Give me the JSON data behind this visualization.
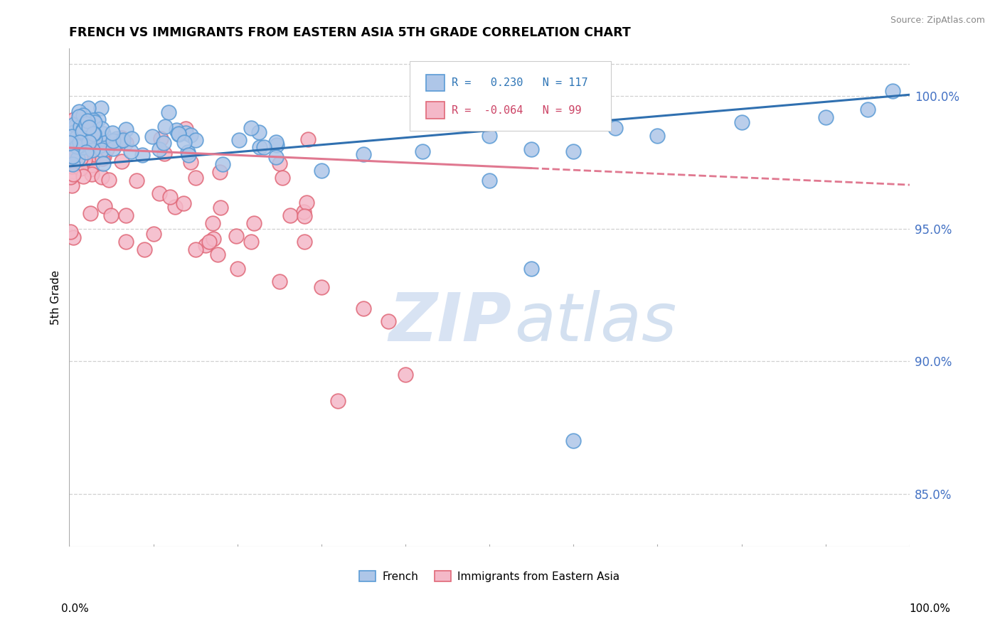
{
  "title": "FRENCH VS IMMIGRANTS FROM EASTERN ASIA 5TH GRADE CORRELATION CHART",
  "source_text": "Source: ZipAtlas.com",
  "ylabel": "5th Grade",
  "watermark_zip": "ZIP",
  "watermark_atlas": "atlas",
  "series": [
    {
      "label": "French",
      "color": "#aec6e8",
      "edge_color": "#5b9bd5",
      "R": 0.23,
      "N": 117,
      "trend_color": "#3070b0",
      "trend_slope": 0.027,
      "trend_intercept": 97.35
    },
    {
      "label": "Immigrants from Eastern Asia",
      "color": "#f4b8c8",
      "edge_color": "#e06878",
      "R": -0.064,
      "N": 99,
      "trend_color": "#e07890",
      "trend_slope": -0.014,
      "trend_intercept": 98.05
    }
  ],
  "xlim": [
    0.0,
    100.0
  ],
  "ylim": [
    83.0,
    101.8
  ],
  "right_yticks": [
    85.0,
    90.0,
    95.0,
    100.0
  ],
  "grid_color": "#d0d0d0",
  "background_color": "#ffffff",
  "title_fontsize": 12.5
}
